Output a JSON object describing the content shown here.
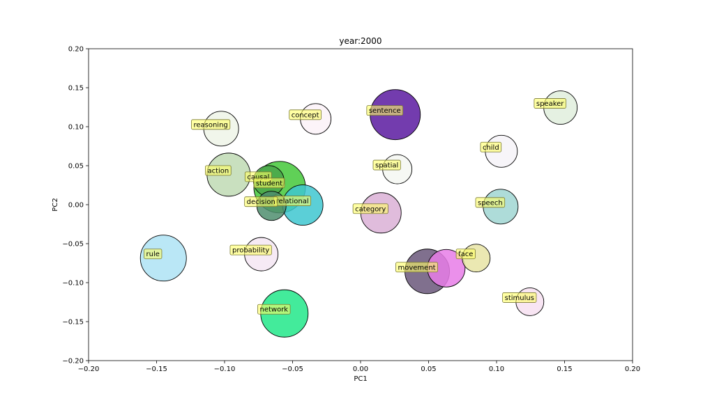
{
  "chart_data": {
    "type": "scatter",
    "title": "year:2000",
    "xlabel": "PC1",
    "ylabel": "PC2",
    "xlim": [
      -0.2,
      0.2
    ],
    "ylim": [
      -0.2,
      0.2
    ],
    "x_ticks": [
      "−0.20",
      "−0.15",
      "−0.10",
      "−0.05",
      "0.00",
      "0.05",
      "0.10",
      "0.15",
      "0.20"
    ],
    "y_ticks": [
      "−0.20",
      "−0.15",
      "−0.10",
      "−0.05",
      "0.00",
      "0.05",
      "0.10",
      "0.15",
      "0.20"
    ],
    "grid": false,
    "points": [
      {
        "label": "reasoning",
        "x": -0.1025,
        "y": 0.0975,
        "size": 25,
        "color": "#eef5e8"
      },
      {
        "label": "concept",
        "x": -0.033,
        "y": 0.11,
        "size": 22,
        "color": "#fbf2f8"
      },
      {
        "label": "sentence",
        "x": 0.0255,
        "y": 0.1155,
        "size": 36,
        "color": "#5b1aa0"
      },
      {
        "label": "speaker",
        "x": 0.147,
        "y": 0.1245,
        "size": 24,
        "color": "#e1eedd"
      },
      {
        "label": "child",
        "x": 0.1035,
        "y": 0.0685,
        "size": 23,
        "color": "#f6f3f8"
      },
      {
        "label": "spatial",
        "x": 0.027,
        "y": 0.0455,
        "size": 21,
        "color": "#f5f7f2"
      },
      {
        "label": "action",
        "x": -0.097,
        "y": 0.0385,
        "size": 31,
        "color": "#c0dbb4"
      },
      {
        "label": "causal",
        "x": -0.0675,
        "y": 0.0305,
        "size": 22,
        "color": "#4aa64a"
      },
      {
        "label": "student",
        "x": -0.0595,
        "y": 0.0225,
        "size": 37,
        "color": "#44c83a"
      },
      {
        "label": "relational",
        "x": -0.0425,
        "y": -0.0005,
        "size": 29,
        "color": "#3ec7d0"
      },
      {
        "label": "decision",
        "x": -0.0655,
        "y": -0.0015,
        "size": 21,
        "color": "#4f8e6e"
      },
      {
        "label": "category",
        "x": 0.015,
        "y": -0.0105,
        "size": 29,
        "color": "#dbb0d6"
      },
      {
        "label": "speech",
        "x": 0.103,
        "y": -0.0025,
        "size": 25,
        "color": "#a0d6d2"
      },
      {
        "label": "rule",
        "x": -0.145,
        "y": -0.0685,
        "size": 33,
        "color": "#aee3f5"
      },
      {
        "label": "probability",
        "x": -0.073,
        "y": -0.0635,
        "size": 24,
        "color": "#f5e6f3"
      },
      {
        "label": "face",
        "x": 0.085,
        "y": -0.0685,
        "size": 20,
        "color": "#e8e4a4"
      },
      {
        "label": "movement",
        "x": 0.049,
        "y": -0.0855,
        "size": 32,
        "color": "#6a577a"
      },
      {
        "label": "",
        "x": 0.063,
        "y": -0.0815,
        "size": 27,
        "color": "#e77de8"
      },
      {
        "label": "stimulus",
        "x": 0.1245,
        "y": -0.1245,
        "size": 20,
        "color": "#f7e1f1"
      },
      {
        "label": "network",
        "x": -0.056,
        "y": -0.1395,
        "size": 34,
        "color": "#22e88a"
      }
    ]
  }
}
